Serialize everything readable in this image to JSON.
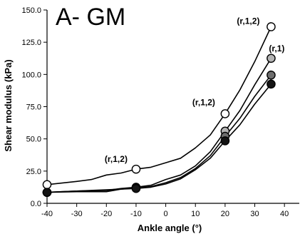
{
  "chart_data": {
    "type": "line",
    "title": "A- GM",
    "xlabel": "Ankle angle (°)",
    "ylabel": "Shear modulus (kPa)",
    "xlim": [
      -40,
      45
    ],
    "ylim": [
      0,
      150
    ],
    "xticks": [
      -40,
      -30,
      -20,
      -10,
      0,
      10,
      20,
      30,
      40
    ],
    "yticks": [
      0,
      25,
      50,
      75,
      100,
      125,
      150
    ],
    "xtick_labels": [
      "-40",
      "-30",
      "-20",
      "-10",
      "0",
      "10",
      "20",
      "30",
      "40"
    ],
    "ytick_labels": [
      "0.0",
      "25.0",
      "50.0",
      "75.0",
      "100.0",
      "125.0",
      "150.0"
    ],
    "grid": false,
    "legend": "none",
    "series": [
      {
        "color": "#ffffff",
        "points": [
          [
            -40,
            14.5
          ],
          [
            -30,
            17
          ],
          [
            -25,
            18.5
          ],
          [
            -20,
            22
          ],
          [
            -15,
            23.5
          ],
          [
            -10,
            26.5
          ],
          [
            -5,
            28
          ],
          [
            0,
            31.5
          ],
          [
            5,
            35
          ],
          [
            10,
            43
          ],
          [
            15,
            53
          ],
          [
            20,
            69.5
          ],
          [
            25,
            88
          ],
          [
            30,
            110
          ],
          [
            35.5,
            137
          ]
        ],
        "markers": [
          [
            -40,
            14.5
          ],
          [
            -10,
            26.5
          ],
          [
            20,
            69.5
          ],
          [
            35.5,
            137
          ]
        ]
      },
      {
        "color": "#b4b4b4",
        "points": [
          [
            -40,
            8.5
          ],
          [
            -30,
            9.5
          ],
          [
            -20,
            10
          ],
          [
            -15,
            11.5
          ],
          [
            -10,
            12.5
          ],
          [
            -5,
            14
          ],
          [
            0,
            18.5
          ],
          [
            5,
            22
          ],
          [
            10,
            29
          ],
          [
            15,
            40
          ],
          [
            20,
            56
          ],
          [
            25,
            72
          ],
          [
            30,
            92
          ],
          [
            35.5,
            112.5
          ]
        ],
        "markers": [
          [
            -40,
            8.5
          ],
          [
            -10,
            12.5
          ],
          [
            20,
            56
          ],
          [
            35.5,
            112.5
          ]
        ]
      },
      {
        "color": "#6e6e6e",
        "points": [
          [
            -40,
            8.5
          ],
          [
            -30,
            9
          ],
          [
            -20,
            9
          ],
          [
            -15,
            11
          ],
          [
            -10,
            12
          ],
          [
            -5,
            13
          ],
          [
            0,
            16
          ],
          [
            5,
            20
          ],
          [
            10,
            27
          ],
          [
            15,
            37
          ],
          [
            20,
            52
          ],
          [
            25,
            66
          ],
          [
            30,
            83
          ],
          [
            35.5,
            99.5
          ]
        ],
        "markers": [
          [
            -40,
            8.5
          ],
          [
            -10,
            12
          ],
          [
            20,
            52
          ],
          [
            35.5,
            99.5
          ]
        ]
      },
      {
        "color": "#141414",
        "points": [
          [
            -40,
            8.5
          ],
          [
            -30,
            9.5
          ],
          [
            -20,
            10.5
          ],
          [
            -15,
            11
          ],
          [
            -10,
            11.5
          ],
          [
            -5,
            12.5
          ],
          [
            0,
            15
          ],
          [
            5,
            19
          ],
          [
            10,
            26
          ],
          [
            15,
            35
          ],
          [
            20,
            48.5
          ],
          [
            25,
            61
          ],
          [
            30,
            77
          ],
          [
            35.5,
            92.5
          ]
        ],
        "markers": [
          [
            -40,
            8.5
          ],
          [
            -10,
            11.5
          ],
          [
            20,
            48.5
          ],
          [
            35.5,
            92.5
          ]
        ]
      }
    ],
    "annotations": [
      {
        "text": "(r,1,2)",
        "x": -10,
        "y": 26.5
      },
      {
        "text": "(r,1,2)",
        "x": 20,
        "y": 69.5
      },
      {
        "text": "(r,1,2)",
        "x": 35.5,
        "y": 137
      },
      {
        "text": "(r,1)",
        "x": 35.5,
        "y": 112.5
      }
    ]
  }
}
